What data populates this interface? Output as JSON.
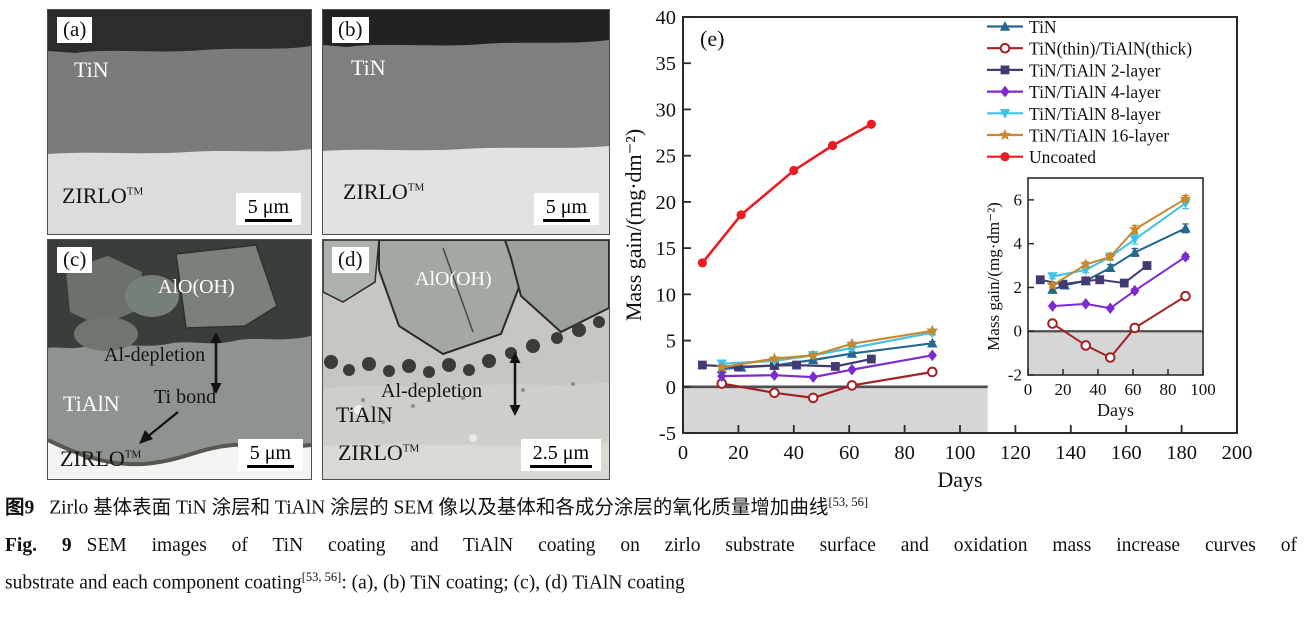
{
  "panels": {
    "a": {
      "tag": "(a)",
      "coating": "TiN",
      "substrate": "ZIRLO",
      "substrate_sup": "TM",
      "scale": "5 μm"
    },
    "b": {
      "tag": "(b)",
      "coating": "TiN",
      "substrate": "ZIRLO",
      "substrate_sup": "TM",
      "scale": "5 μm"
    },
    "c": {
      "tag": "(c)",
      "oxide": "AlO(OH)",
      "depletion": "Al-depletion",
      "coating": "TiAlN",
      "bond": "Ti bond",
      "substrate": "ZIRLO",
      "substrate_sup": "TM",
      "scale": "5 μm"
    },
    "d": {
      "tag": "(d)",
      "oxide": "AlO(OH)",
      "depletion": "Al-depletion",
      "coating": "TiAlN",
      "substrate": "ZIRLO",
      "substrate_sup": "TM",
      "scale": "2.5 μm"
    }
  },
  "chart_data": {
    "type": "line",
    "panel_tag": "(e)",
    "xlabel": "Days",
    "ylabel": "Mass gain/(mg·dm⁻²)",
    "xlim": [
      0,
      200
    ],
    "ylim": [
      -5,
      40
    ],
    "xticks": [
      0,
      20,
      40,
      60,
      80,
      100,
      120,
      140,
      160,
      180,
      200
    ],
    "yticks": [
      -5,
      0,
      5,
      10,
      15,
      20,
      25,
      30,
      35,
      40
    ],
    "grid": false,
    "legend_position": "top-right",
    "zero_line_x_extent": [
      0,
      110
    ],
    "shaded_below_zero": {
      "x_extent": [
        0,
        110
      ],
      "color": "#d6d6d6"
    },
    "series": [
      {
        "name": "TiN",
        "color": "#25688f",
        "marker": "triangle-up",
        "in_inset": true,
        "x": [
          14,
          21,
          33,
          47,
          61,
          90
        ],
        "y": [
          1.9,
          2.1,
          2.3,
          2.9,
          3.6,
          4.7
        ],
        "err": [
          0.1,
          0.08,
          0.1,
          0.15,
          0.18,
          0.2
        ]
      },
      {
        "name": "TiN(thin)/TiAlN(thick)",
        "color": "#a32024",
        "marker": "circle-open",
        "in_inset": true,
        "x": [
          14,
          33,
          47,
          61,
          90
        ],
        "y": [
          0.35,
          -0.65,
          -1.2,
          0.15,
          1.6
        ],
        "err": [
          0.04,
          0.04,
          0.04,
          0.04,
          0.04
        ]
      },
      {
        "name": "TiN/TiAlN 2-layer",
        "color": "#423a72",
        "marker": "square",
        "in_inset": true,
        "x": [
          7,
          20,
          33,
          41,
          55,
          68
        ],
        "y": [
          2.35,
          2.15,
          2.3,
          2.35,
          2.2,
          3.0
        ],
        "err": [
          0.05,
          0.05,
          0.05,
          0.05,
          0.05,
          0.08
        ]
      },
      {
        "name": "TiN/TiAlN 4-layer",
        "color": "#7d2ad1",
        "marker": "diamond",
        "in_inset": true,
        "x": [
          14,
          33,
          47,
          61,
          90
        ],
        "y": [
          1.15,
          1.25,
          1.05,
          1.85,
          3.4
        ],
        "err": [
          0.05,
          0.05,
          0.05,
          0.1,
          0.12
        ]
      },
      {
        "name": "TiN/TiAlN 8-layer",
        "color": "#41c1e4",
        "marker": "triangle-down",
        "in_inset": true,
        "x": [
          14,
          33,
          47,
          61,
          90
        ],
        "y": [
          2.5,
          2.8,
          3.4,
          4.2,
          5.85
        ],
        "err": [
          0.1,
          0.12,
          0.15,
          0.22,
          0.25
        ]
      },
      {
        "name": "TiN/TiAlN 16-layer",
        "color": "#c8882f",
        "marker": "star",
        "in_inset": true,
        "x": [
          14,
          33,
          47,
          61,
          90
        ],
        "y": [
          2.1,
          3.05,
          3.4,
          4.65,
          6.05
        ],
        "err": [
          0.1,
          0.12,
          0.15,
          0.18,
          0.15
        ]
      },
      {
        "name": "Uncoated",
        "color": "#ec1b23",
        "marker": "circle",
        "in_inset": false,
        "x": [
          7,
          21,
          40,
          54,
          68
        ],
        "y": [
          13.4,
          18.6,
          23.4,
          26.1,
          28.4
        ],
        "err": [
          0,
          0,
          0,
          0,
          0
        ]
      }
    ],
    "inset": {
      "xlabel": "Days",
      "ylabel": "Mass gain/(mg·dm⁻²)",
      "xlim": [
        0,
        100
      ],
      "ylim": [
        -2,
        7
      ],
      "xticks": [
        0,
        20,
        40,
        60,
        80,
        100
      ],
      "yticks": [
        -2,
        0,
        2,
        4,
        6
      ],
      "shaded_below_zero": true
    }
  },
  "caption": {
    "line1_label": "图9",
    "line1_text": "Zirlo 基体表面 TiN 涂层和 TiAlN 涂层的 SEM 像以及基体和各成分涂层的氧化质量增加曲线",
    "line1_ref": "[53, 56]",
    "line2_label": "Fig. 9",
    "line2_text": "SEM images of TiN coating and TiAlN coating on zirlo substrate surface and oxidation mass increase curves of",
    "line3_text": "substrate and each component coating",
    "line3_ref": "[53, 56]",
    "line3_tail": ": (a), (b) TiN coating; (c), (d) TiAlN coating"
  }
}
